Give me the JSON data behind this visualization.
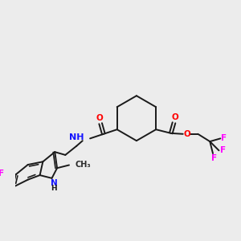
{
  "background_color": "#ececec",
  "bond_color": "#1a1a1a",
  "bond_width": 1.4,
  "atom_colors": {
    "N": "#1414ff",
    "O": "#ff0000",
    "F": "#ff00ff",
    "C": "#1a1a1a",
    "H": "#1a1a1a"
  },
  "font_size": 7.5,
  "figsize": [
    3.0,
    3.0
  ],
  "dpi": 100
}
